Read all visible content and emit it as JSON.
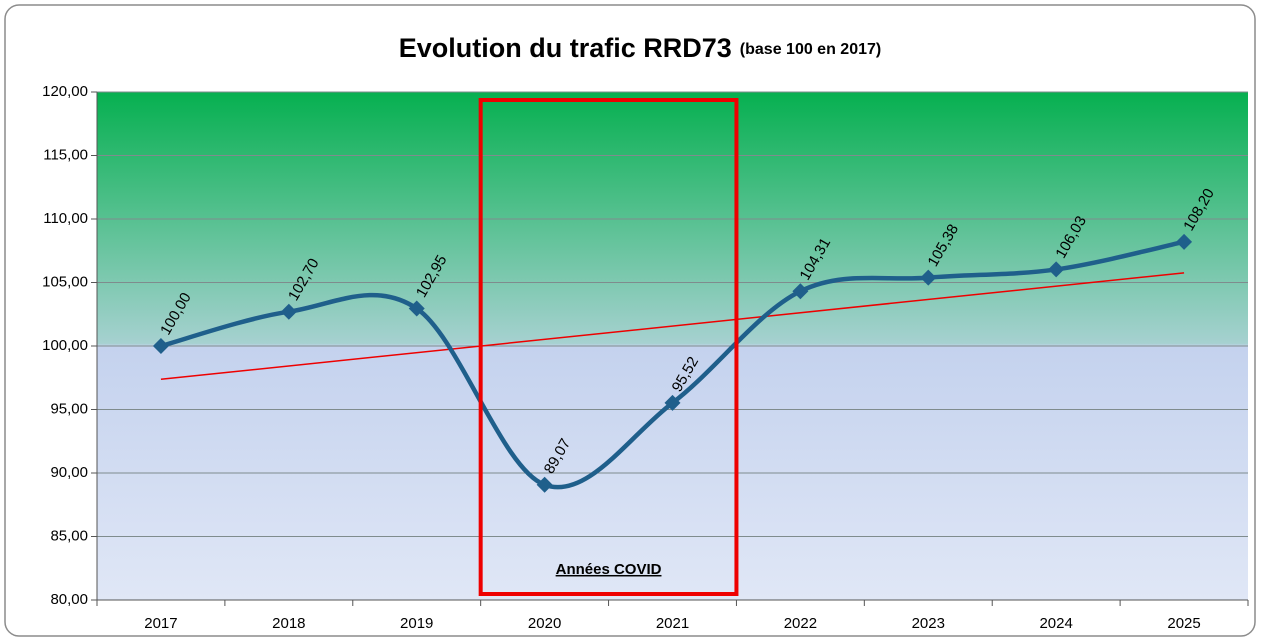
{
  "chart_data": {
    "type": "line",
    "title": "Evolution du trafic RRD73",
    "subtitle": "(base 100 en 2017)",
    "categories": [
      "2017",
      "2018",
      "2019",
      "2020",
      "2021",
      "2022",
      "2023",
      "2024",
      "2025"
    ],
    "series": [
      {
        "color": "#1f5f8b",
        "values": [
          100,
          102.7,
          102.95,
          89.07,
          95.52,
          104.31,
          105.38,
          106.03,
          108.2
        ],
        "value_labels": [
          "100,00",
          "102,70",
          "102,95",
          "89,07",
          "95,52",
          "104,31",
          "105,38",
          "106,03",
          "108,20"
        ]
      }
    ],
    "trendline": {
      "color": "#ee0000",
      "start": 97.38,
      "end": 105.76
    },
    "annotation": {
      "text": "Années COVID",
      "from": "2020",
      "to": "2021",
      "color": "#ee0000"
    },
    "ylim": [
      80,
      120
    ],
    "yticks": [
      {
        "value": 80,
        "label": "80,00"
      },
      {
        "value": 85,
        "label": "85,00"
      },
      {
        "value": 90,
        "label": "90,00"
      },
      {
        "value": 95,
        "label": "95,00"
      },
      {
        "value": 100,
        "label": "100,00"
      },
      {
        "value": 105,
        "label": "105,00"
      },
      {
        "value": 110,
        "label": "110,00"
      },
      {
        "value": 115,
        "label": "115,00"
      },
      {
        "value": 120,
        "label": "120,00"
      }
    ],
    "grid": true
  }
}
